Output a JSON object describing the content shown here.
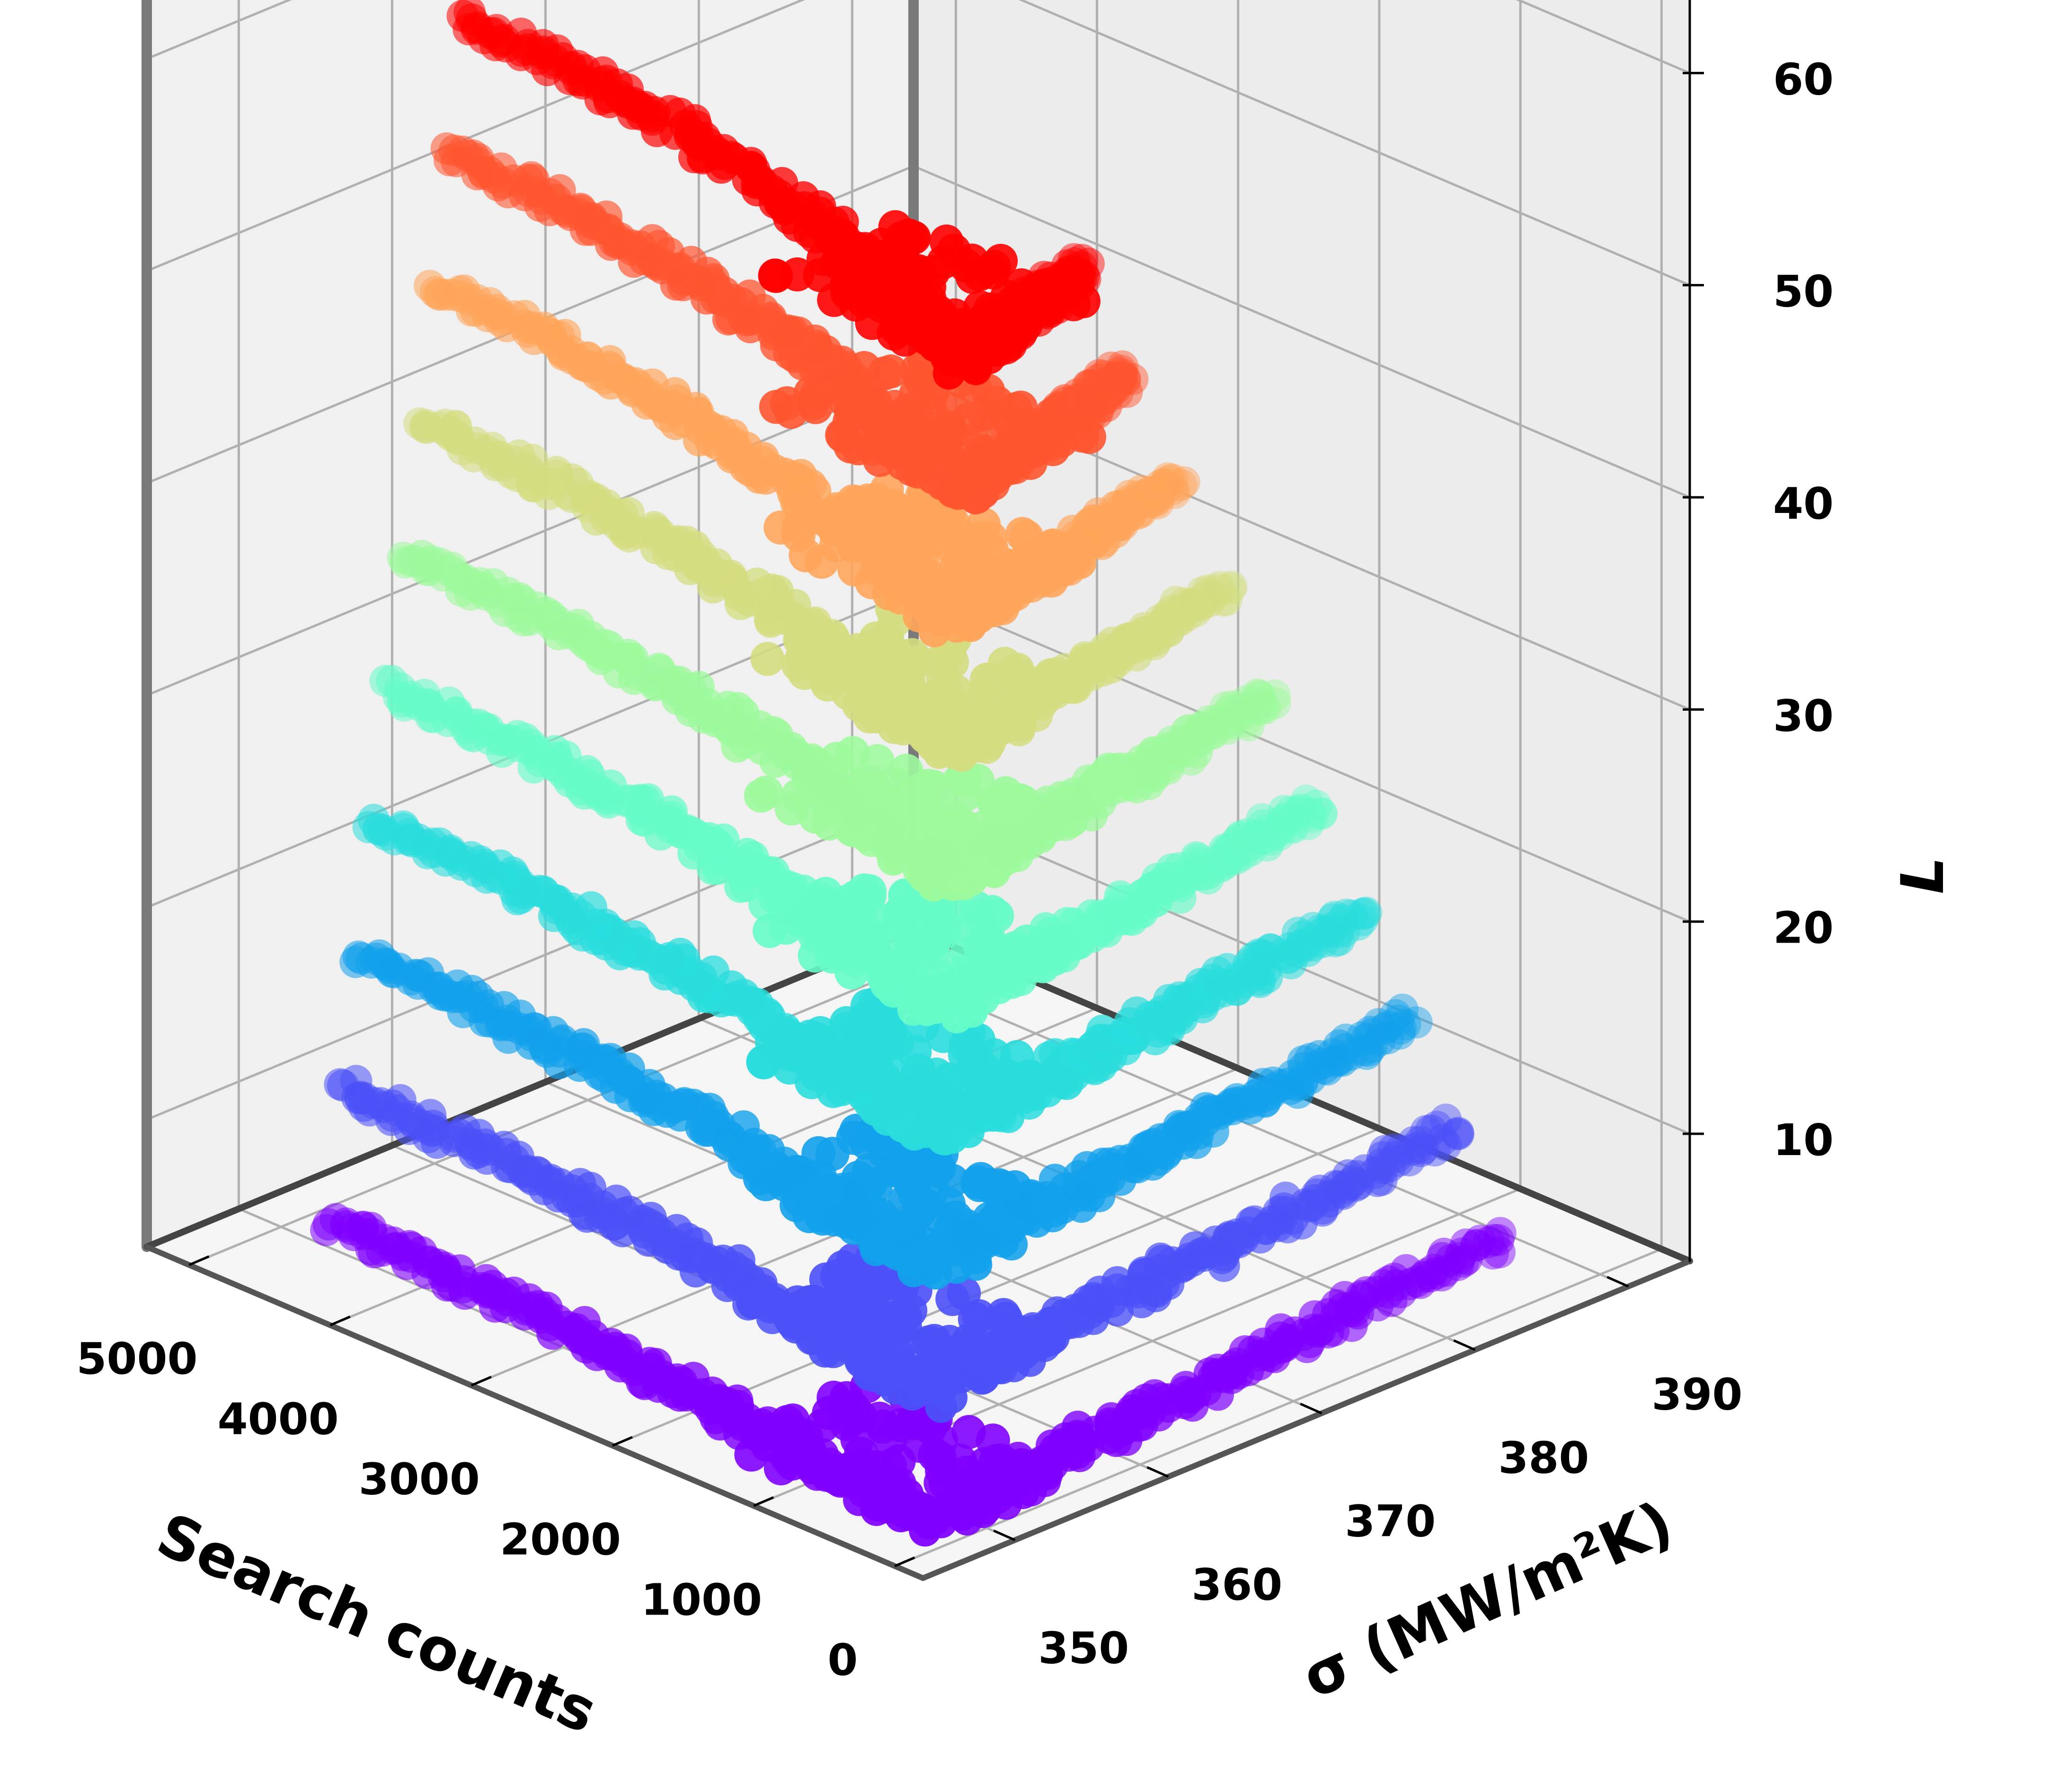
{
  "chart_data": {
    "type": "scatter3d",
    "xlabel": "Search counts",
    "ylabel": "σ (MW/m²K)",
    "zlabel": "L",
    "xticks": [
      5000,
      4000,
      3000,
      2000,
      1000,
      0
    ],
    "yticks": [
      390,
      380,
      370,
      360,
      350
    ],
    "zticks": [
      10,
      20,
      30,
      40,
      50,
      60
    ],
    "xlim": [
      5300,
      -200
    ],
    "ylim": [
      394,
      344
    ],
    "zlim": [
      4,
      64
    ],
    "grid": true,
    "series": [
      {
        "L": 6,
        "color": "#7f00ff",
        "count_range": [
          0,
          5000
        ],
        "sigma_range": [
          344,
          394
        ]
      },
      {
        "L": 12,
        "color": "#4b50f8",
        "count_range": [
          0,
          5000
        ],
        "sigma_range": [
          346,
          388
        ]
      },
      {
        "L": 18,
        "color": "#12a1ec",
        "count_range": [
          0,
          5000
        ],
        "sigma_range": [
          348,
          382
        ]
      },
      {
        "L": 24,
        "color": "#2adddd",
        "count_range": [
          0,
          5000
        ],
        "sigma_range": [
          350,
          376
        ]
      },
      {
        "L": 30,
        "color": "#66fcc8",
        "count_range": [
          0,
          5000
        ],
        "sigma_range": [
          352,
          372
        ]
      },
      {
        "L": 36,
        "color": "#9dfa9c",
        "count_range": [
          0,
          5000
        ],
        "sigma_range": [
          354,
          368
        ]
      },
      {
        "L": 42,
        "color": "#d4dd80",
        "count_range": [
          0,
          5000
        ],
        "sigma_range": [
          356,
          364
        ]
      },
      {
        "L": 48,
        "color": "#ffa55b",
        "count_range": [
          0,
          5000
        ],
        "sigma_range": [
          358,
          362
        ]
      },
      {
        "L": 54,
        "color": "#ff5530",
        "count_range": [
          0,
          5000
        ],
        "sigma_range": [
          360,
          360
        ]
      },
      {
        "L": 60,
        "color": "#ff0000",
        "count_range": [
          0,
          5000
        ],
        "sigma_range": [
          362,
          358
        ]
      }
    ]
  }
}
